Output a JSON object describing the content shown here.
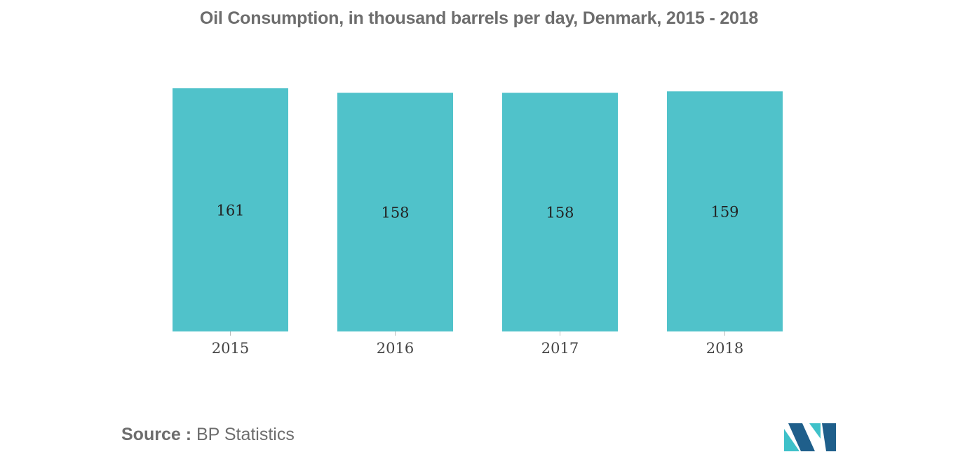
{
  "chart_data": {
    "type": "bar",
    "title": "Oil Consumption, in thousand barrels per day, Denmark, 2015 - 2018",
    "categories": [
      "2015",
      "2016",
      "2017",
      "2018"
    ],
    "values": [
      161,
      158,
      158,
      159
    ],
    "data_labels": [
      "161",
      "158",
      "158",
      "159"
    ],
    "xlabel": "",
    "ylabel": "",
    "grid": false,
    "legend": "none",
    "bar_color": "#50c2ca"
  },
  "source": {
    "label": "Source :",
    "text": "BP Statistics"
  },
  "colors": {
    "title": "#6d6d6d",
    "axis_text": "#444444",
    "logo_dark": "#1f5f8b",
    "logo_light": "#3ec1c9"
  },
  "logo": {
    "icon": "company-logo-icon"
  }
}
